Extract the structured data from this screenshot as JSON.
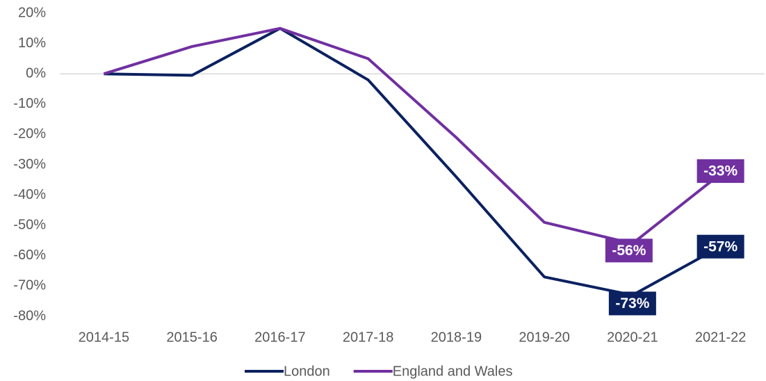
{
  "chart_data": {
    "type": "line",
    "categories": [
      "2014-15",
      "2015-16",
      "2016-17",
      "2017-18",
      "2018-19",
      "2019-20",
      "2020-21",
      "2021-22"
    ],
    "series": [
      {
        "name": "London",
        "color": "#0b2160",
        "values": [
          0,
          -0.5,
          15,
          -2,
          -34,
          -67,
          -73,
          -57
        ],
        "value_labels": [
          null,
          null,
          null,
          null,
          null,
          null,
          "-73%",
          "-57%"
        ]
      },
      {
        "name": "England and Wales",
        "color": "#7030a0",
        "values": [
          0,
          9,
          15,
          5,
          -21,
          -49,
          -56,
          -33
        ],
        "value_labels": [
          null,
          null,
          null,
          null,
          null,
          null,
          "-56%",
          "-33%"
        ]
      }
    ],
    "ylim": [
      -80,
      20
    ],
    "yticks": [
      {
        "value": 20,
        "label": "20%"
      },
      {
        "value": 10,
        "label": "10%"
      },
      {
        "value": 0,
        "label": "0%"
      },
      {
        "value": -10,
        "label": "-10%"
      },
      {
        "value": -20,
        "label": "-20%"
      },
      {
        "value": -30,
        "label": "-30%"
      },
      {
        "value": -40,
        "label": "-40%"
      },
      {
        "value": -50,
        "label": "-50%"
      },
      {
        "value": -60,
        "label": "-60%"
      },
      {
        "value": -70,
        "label": "-70%"
      },
      {
        "value": -80,
        "label": "-80%"
      }
    ],
    "grid": false,
    "legend": "bottom"
  }
}
